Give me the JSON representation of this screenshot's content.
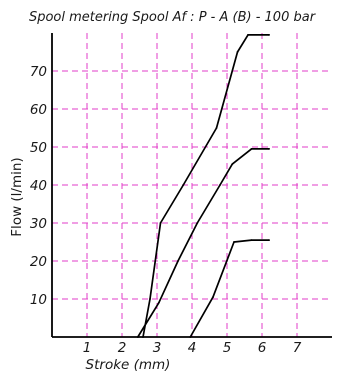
{
  "chart_data": {
    "type": "line",
    "title": "Spool metering Spool Af : P - A (B) - 100 bar",
    "xlabel": "Stroke  (mm)",
    "ylabel": "Flow (l/min)",
    "xlim": [
      0,
      8
    ],
    "ylim": [
      0,
      80
    ],
    "x_ticks": [
      "1",
      "2",
      "3",
      "4",
      "5",
      "6",
      "7"
    ],
    "y_ticks": [
      "10",
      "20",
      "30",
      "40",
      "50",
      "60",
      "70"
    ],
    "grid": true,
    "grid_style": "dashed",
    "legend": "none",
    "series": [
      {
        "points": [
          {
            "x": 2.6,
            "y": 0
          },
          {
            "x": 2.8,
            "y": 10
          },
          {
            "x": 3.1,
            "y": 30
          },
          {
            "x": 3.75,
            "y": 40
          },
          {
            "x": 4.7,
            "y": 55
          },
          {
            "x": 5.3,
            "y": 75
          },
          {
            "x": 5.6,
            "y": 79.5
          },
          {
            "x": 6.2,
            "y": 79.5
          }
        ]
      },
      {
        "points": [
          {
            "x": 2.45,
            "y": 0
          },
          {
            "x": 3.05,
            "y": 9
          },
          {
            "x": 3.6,
            "y": 20
          },
          {
            "x": 4.15,
            "y": 30
          },
          {
            "x": 4.8,
            "y": 40
          },
          {
            "x": 5.15,
            "y": 45.5
          },
          {
            "x": 5.7,
            "y": 49.5
          },
          {
            "x": 6.2,
            "y": 49.5
          }
        ]
      },
      {
        "points": [
          {
            "x": 3.95,
            "y": 0
          },
          {
            "x": 4.6,
            "y": 10.5
          },
          {
            "x": 5.2,
            "y": 25
          },
          {
            "x": 5.7,
            "y": 25.5
          },
          {
            "x": 6.2,
            "y": 25.5
          }
        ]
      }
    ]
  },
  "colors": {
    "grid": "#e23ec8",
    "axis": "#000000",
    "line": "#000000",
    "text": "#1a1a1a",
    "background": "#ffffff"
  }
}
